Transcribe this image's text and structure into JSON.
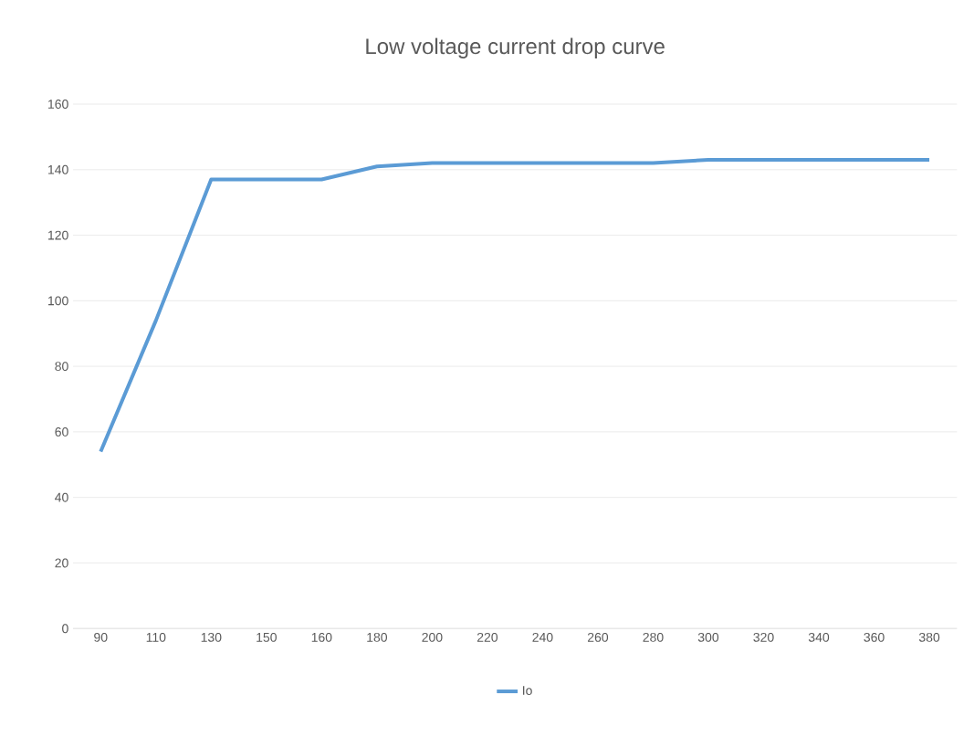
{
  "chart_data": {
    "type": "line",
    "title": "Low voltage current drop curve",
    "categories": [
      "90",
      "110",
      "130",
      "150",
      "160",
      "180",
      "200",
      "220",
      "240",
      "260",
      "280",
      "300",
      "320",
      "340",
      "360",
      "380"
    ],
    "series": [
      {
        "name": "Io",
        "color": "#5b9bd5",
        "values": [
          54,
          94,
          137,
          137,
          137,
          141,
          142,
          142,
          142,
          142,
          142,
          143,
          143,
          143,
          143,
          143
        ]
      }
    ],
    "ylim": [
      0,
      160
    ],
    "yticks": [
      0,
      20,
      40,
      60,
      80,
      100,
      120,
      140,
      160
    ],
    "grid": "y",
    "legend": "bottom",
    "marker": "none",
    "line_style": "solid"
  }
}
